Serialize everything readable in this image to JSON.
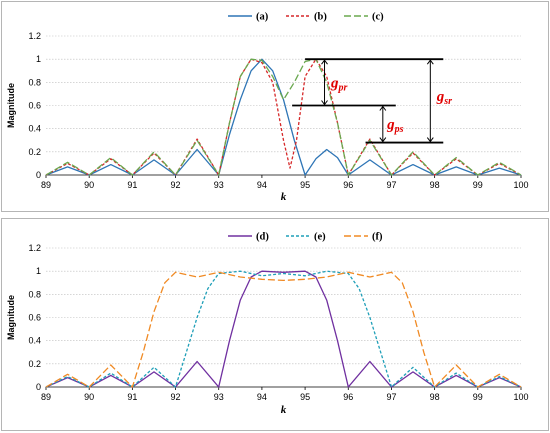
{
  "chart_data": [
    {
      "type": "line",
      "xlabel": "k",
      "ylabel": "Magnitude",
      "xlim": [
        89,
        100
      ],
      "ylim": [
        0,
        1.2
      ],
      "xticks": [
        "89",
        "90",
        "91",
        "92",
        "93",
        "94",
        "95",
        "96",
        "97",
        "98",
        "99",
        "100"
      ],
      "yticks": [
        "0",
        "0.2",
        "0.4",
        "0.6",
        "0.8",
        "1",
        "1.2"
      ],
      "grid": true,
      "legend": "top-center",
      "series": [
        {
          "name": "(a)",
          "color": "#2e75b6",
          "dash": "solid",
          "x": [
            89,
            89.5,
            90,
            90.5,
            91,
            91.5,
            92,
            92.5,
            93,
            93.25,
            93.5,
            93.75,
            94,
            94.25,
            94.5,
            94.75,
            95,
            95.25,
            95.5,
            95.75,
            96,
            96.5,
            97,
            97.5,
            98,
            98.5,
            99,
            99.5,
            100
          ],
          "y": [
            0,
            0.07,
            0,
            0.09,
            0,
            0.13,
            0,
            0.22,
            0,
            0.35,
            0.65,
            0.9,
            1.0,
            0.9,
            0.65,
            0.3,
            0,
            0.14,
            0.22,
            0.15,
            0,
            0.13,
            0,
            0.09,
            0,
            0.07,
            0,
            0.06,
            0
          ]
        },
        {
          "name": "(b)",
          "color": "#d62728",
          "dash": "dashed",
          "x": [
            89,
            89.5,
            90,
            90.5,
            91,
            91.5,
            92,
            92.5,
            93,
            93.25,
            93.5,
            93.75,
            94,
            94.25,
            94.5,
            94.65,
            94.8,
            95,
            95.25,
            95.5,
            95.75,
            96,
            96.5,
            97,
            97.5,
            98,
            98.5,
            99,
            99.5,
            100
          ],
          "y": [
            0,
            0.1,
            0,
            0.14,
            0,
            0.19,
            0,
            0.31,
            0,
            0.45,
            0.85,
            1.0,
            0.97,
            0.8,
            0.3,
            0.06,
            0.3,
            0.85,
            1.0,
            0.85,
            0.45,
            0,
            0.31,
            0,
            0.19,
            0,
            0.14,
            0,
            0.1,
            0
          ]
        },
        {
          "name": "(c)",
          "color": "#6aa84f",
          "dash": "longdash",
          "x": [
            89,
            89.5,
            90,
            90.5,
            91,
            91.5,
            92,
            92.5,
            93,
            93.25,
            93.5,
            93.75,
            94,
            94.25,
            94.5,
            94.75,
            95,
            95.25,
            95.5,
            95.75,
            96,
            96.5,
            97,
            97.5,
            98,
            98.5,
            99,
            99.5,
            100
          ],
          "y": [
            0,
            0.11,
            0,
            0.15,
            0,
            0.2,
            0,
            0.3,
            0,
            0.45,
            0.85,
            1.0,
            0.99,
            0.85,
            0.65,
            0.8,
            0.98,
            1.0,
            0.8,
            0.45,
            0,
            0.3,
            0,
            0.2,
            0,
            0.15,
            0,
            0.11,
            0
          ]
        }
      ],
      "annotations": [
        {
          "text": "g",
          "sub": "pr"
        },
        {
          "text": "g",
          "sub": "sr"
        },
        {
          "text": "g",
          "sub": "ps"
        }
      ]
    },
    {
      "type": "line",
      "xlabel": "k",
      "ylabel": "Magnitude",
      "xlim": [
        89,
        100
      ],
      "ylim": [
        0,
        1.2
      ],
      "xticks": [
        "89",
        "90",
        "91",
        "92",
        "93",
        "94",
        "95",
        "96",
        "97",
        "98",
        "99",
        "100"
      ],
      "yticks": [
        "0",
        "0.2",
        "0.4",
        "0.6",
        "0.8",
        "1",
        "1.2"
      ],
      "grid": true,
      "legend": "top-center",
      "series": [
        {
          "name": "(d)",
          "color": "#7030a0",
          "dash": "solid",
          "x": [
            89,
            89.5,
            90,
            90.5,
            91,
            91.5,
            92,
            92.5,
            93,
            93.25,
            93.5,
            93.75,
            94,
            94.5,
            95,
            95.25,
            95.5,
            95.75,
            96,
            96.5,
            97,
            97.5,
            98,
            98.5,
            99,
            99.5,
            100
          ],
          "y": [
            0,
            0.08,
            0,
            0.1,
            0,
            0.13,
            0,
            0.22,
            0,
            0.4,
            0.75,
            0.95,
            1.0,
            0.99,
            1.0,
            0.95,
            0.75,
            0.4,
            0,
            0.22,
            0,
            0.13,
            0,
            0.1,
            0,
            0.08,
            0
          ]
        },
        {
          "name": "(e)",
          "color": "#1f9fb8",
          "dash": "dashed",
          "x": [
            89,
            89.5,
            90,
            90.5,
            91,
            91.5,
            92,
            92.25,
            92.5,
            92.75,
            93,
            93.5,
            94,
            94.5,
            95,
            95.5,
            96,
            96.25,
            96.5,
            96.75,
            97,
            97.5,
            98,
            98.5,
            99,
            99.5,
            100
          ],
          "y": [
            0,
            0.09,
            0,
            0.12,
            0,
            0.17,
            0,
            0.3,
            0.6,
            0.85,
            0.98,
            1.0,
            0.96,
            0.98,
            0.96,
            1.0,
            0.98,
            0.85,
            0.6,
            0.3,
            0,
            0.17,
            0,
            0.12,
            0,
            0.09,
            0
          ]
        },
        {
          "name": "(f)",
          "color": "#f08a24",
          "dash": "longdash",
          "x": [
            89,
            89.5,
            90,
            90.5,
            91,
            91.25,
            91.5,
            91.75,
            92,
            92.5,
            93,
            93.5,
            94,
            94.5,
            95,
            95.5,
            96,
            96.5,
            97,
            97.25,
            97.5,
            97.75,
            98,
            98.5,
            99,
            99.5,
            100
          ],
          "y": [
            0,
            0.11,
            0,
            0.19,
            0,
            0.3,
            0.65,
            0.9,
            0.99,
            0.95,
            0.99,
            0.95,
            0.93,
            0.92,
            0.93,
            0.95,
            0.99,
            0.95,
            0.99,
            0.9,
            0.65,
            0.3,
            0,
            0.19,
            0,
            0.11,
            0
          ]
        }
      ]
    }
  ]
}
